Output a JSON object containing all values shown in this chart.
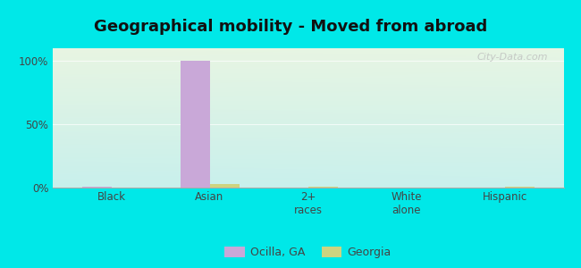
{
  "title": "Geographical mobility - Moved from abroad",
  "categories": [
    "Black",
    "Asian",
    "2+\nraces",
    "White\nalone",
    "Hispanic"
  ],
  "ocilla_values": [
    0.5,
    100.0,
    0.0,
    0.0,
    0.0
  ],
  "georgia_values": [
    0.3,
    3.0,
    0.5,
    0.0,
    0.5
  ],
  "ocilla_color": "#c9a8d8",
  "georgia_color": "#cdd480",
  "bar_width": 0.3,
  "ylim": [
    0,
    110
  ],
  "yticks": [
    0,
    50,
    100
  ],
  "ytick_labels": [
    "0%",
    "50%",
    "100%"
  ],
  "figure_bg_color": "#00e8e8",
  "plot_bg_top": "#e8f5e2",
  "plot_bg_bottom": "#c8f0ec",
  "title_fontsize": 13,
  "legend_labels": [
    "Ocilla, GA",
    "Georgia"
  ],
  "watermark": "City-Data.com"
}
